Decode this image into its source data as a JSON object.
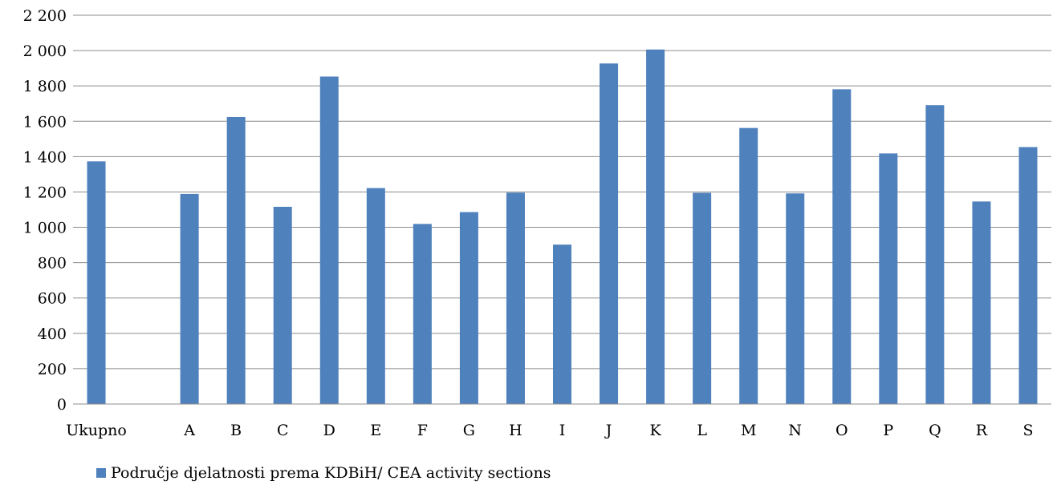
{
  "chart_data": {
    "type": "bar",
    "categories": [
      "Ukupno",
      "",
      "A",
      "B",
      "C",
      "D",
      "E",
      "F",
      "G",
      "H",
      "I",
      "J",
      "K",
      "L",
      "M",
      "N",
      "O",
      "P",
      "Q",
      "R",
      "S"
    ],
    "series": [
      {
        "name": "Područje djelatnosti prema KDBiH/ CEA activity sections",
        "values": [
          1373,
          null,
          1189,
          1624,
          1116,
          1853,
          1222,
          1019,
          1086,
          1196,
          902,
          1927,
          2006,
          1195,
          1562,
          1192,
          1781,
          1418,
          1691,
          1146,
          1454
        ]
      }
    ],
    "ylim": [
      0,
      2200
    ],
    "yticks": [
      0,
      200,
      400,
      600,
      800,
      1000,
      1200,
      1400,
      1600,
      1800,
      2000,
      2200
    ],
    "ytick_labels": [
      "0",
      "200",
      "400",
      "600",
      "800",
      "1 000",
      "1 200",
      "1 400",
      "1 600",
      "1 800",
      "2 000",
      "2 200"
    ],
    "grid": true,
    "legend_position": "bottom",
    "bar_color": "#4F81BD",
    "grid_color": "#8C8C8C"
  }
}
